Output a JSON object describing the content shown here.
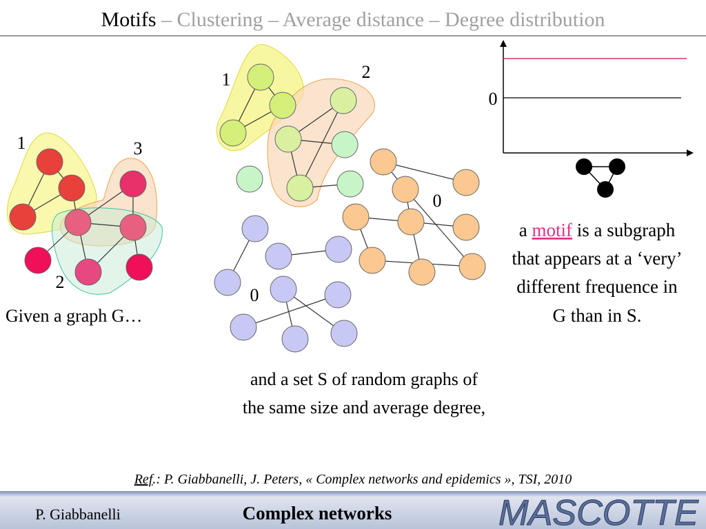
{
  "header": {
    "title": "Motifs",
    "subtitle": " – Clustering – Average distance – Degree distribution"
  },
  "graph_g": {
    "labels": [
      "1",
      "3",
      "2"
    ],
    "caption": "Given a graph G…"
  },
  "random_graphs": {
    "labels": [
      "1",
      "2",
      "0",
      "0"
    ],
    "caption": [
      "and a set S of random graphs of",
      "the same size and average degree,"
    ]
  },
  "frequency_chart": {
    "zero_label": "0"
  },
  "definition": {
    "prefix": "a ",
    "term": "motif",
    "suffix": " is a subgraph",
    "lines": [
      "that appears at a ‘very’",
      "different frequence in",
      "G than in S."
    ]
  },
  "reference": {
    "ref": "Ref",
    "text": ".: P. Giabbanelli, J. Peters, « Complex networks and epidemics », TSI, 2010"
  },
  "footer": {
    "author": "P. Giabbanelli",
    "course": "Complex networks",
    "logo": "MASCOTTE"
  }
}
